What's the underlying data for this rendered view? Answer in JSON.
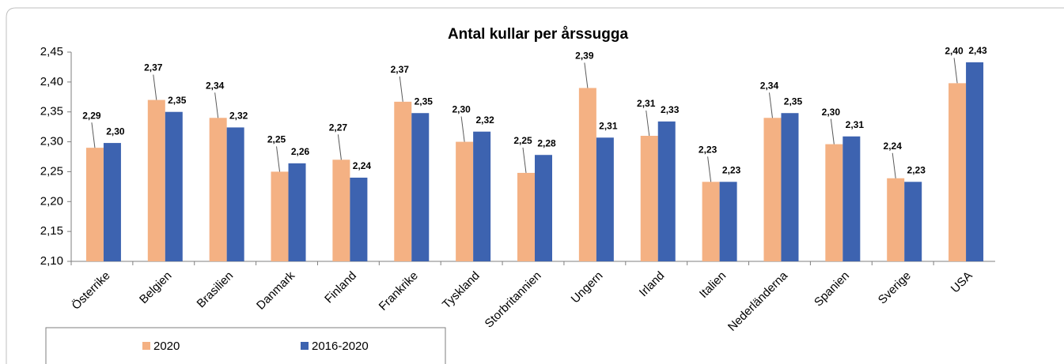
{
  "chart_data": {
    "type": "bar",
    "title": "Antal kullar per årssugga",
    "categories": [
      "Österrike",
      "Belgien",
      "Brasilien",
      "Danmark",
      "Finland",
      "Frankrike",
      "Tyskland",
      "Storbritannien",
      "Ungern",
      "Irland",
      "Italien",
      "Nederländerna",
      "Spanien",
      "Sverige",
      "USA"
    ],
    "series": [
      {
        "name": "2020",
        "color": "#f4b183",
        "values": [
          2.29,
          2.37,
          2.34,
          2.25,
          2.27,
          2.367,
          2.3,
          2.248,
          2.39,
          2.31,
          2.233,
          2.34,
          2.296,
          2.239,
          2.398
        ],
        "value_labels": [
          "2,29",
          "2,37",
          "2,34",
          "2,25",
          "2,27",
          "2,37",
          "2,30",
          "2,25",
          "2,39",
          "2,31",
          "2,23",
          "2,34",
          "2,30",
          "2,24",
          "2,40"
        ]
      },
      {
        "name": "2016-2020",
        "color": "#3d63b0",
        "values": [
          2.298,
          2.35,
          2.324,
          2.264,
          2.24,
          2.348,
          2.317,
          2.278,
          2.307,
          2.334,
          2.233,
          2.348,
          2.309,
          2.233,
          2.433
        ],
        "value_labels": [
          "2,30",
          "2,35",
          "2,32",
          "2,26",
          "2,24",
          "2,35",
          "2,32",
          "2,28",
          "2,31",
          "2,33",
          "2,23",
          "2,35",
          "2,31",
          "2,23",
          "2,43"
        ]
      }
    ],
    "ylim": [
      2.1,
      2.45
    ],
    "yticks": [
      {
        "value": 2.1,
        "label": "2,10"
      },
      {
        "value": 2.15,
        "label": "2,15"
      },
      {
        "value": 2.2,
        "label": "2,20"
      },
      {
        "value": 2.25,
        "label": "2,25"
      },
      {
        "value": 2.3,
        "label": "2,30"
      },
      {
        "value": 2.35,
        "label": "2,35"
      },
      {
        "value": 2.4,
        "label": "2,40"
      },
      {
        "value": 2.45,
        "label": "2,45"
      }
    ],
    "grid": false,
    "legend": "bottom-left"
  }
}
